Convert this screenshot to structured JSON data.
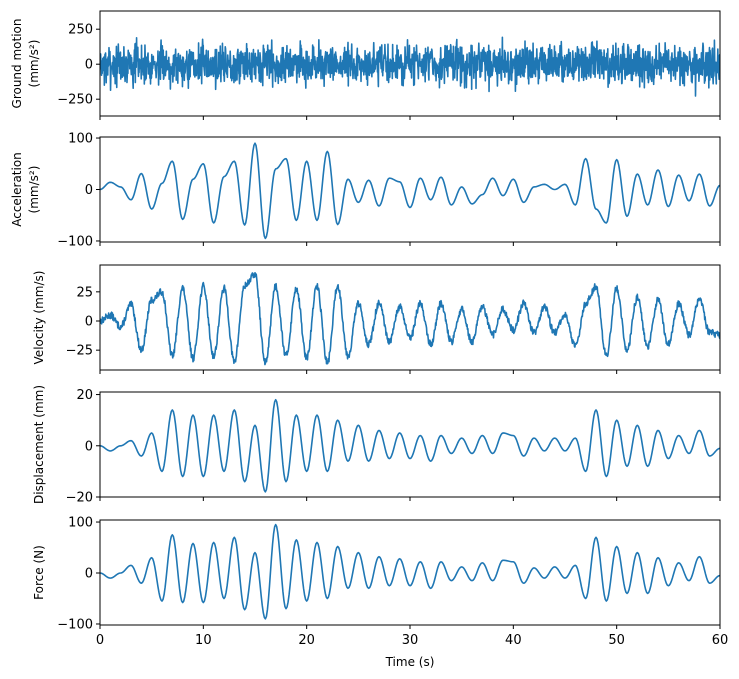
{
  "chart_data": [
    {
      "type": "line",
      "ylabel_lines": [
        "Ground motion",
        "(mm/s²)"
      ],
      "ylim": [
        -370,
        380
      ],
      "yticks": [
        -250,
        0,
        250
      ],
      "ytick_labels": [
        "−250",
        "0",
        "250"
      ],
      "xlim": [
        0,
        60
      ],
      "series": [
        {
          "color": "#1f77b4",
          "style": "noise",
          "amplitude": 210,
          "step": 0.03,
          "seed": 7
        }
      ]
    },
    {
      "type": "line",
      "ylabel_lines": [
        "Acceleration",
        "(mm/s²)"
      ],
      "ylim": [
        -102,
        102
      ],
      "yticks": [
        -100,
        0,
        100
      ],
      "ytick_labels": [
        "−100",
        "0",
        "100"
      ],
      "xlim": [
        0,
        60
      ],
      "series": [
        {
          "color": "#1f77b4",
          "style": "smooth",
          "step": 0.1,
          "x": [
            0,
            1,
            2,
            3,
            4,
            5,
            6,
            7,
            8,
            9,
            10,
            11,
            12,
            13,
            14,
            15,
            16,
            17,
            18,
            19,
            20,
            21,
            22,
            23,
            24,
            25,
            26,
            27,
            28,
            29,
            30,
            31,
            32,
            33,
            34,
            35,
            36,
            37,
            38,
            39,
            40,
            41,
            42,
            43,
            44,
            45,
            46,
            47,
            48,
            49,
            50,
            51,
            52,
            53,
            54,
            55,
            56,
            57,
            58,
            59,
            60
          ],
          "y": [
            0,
            14,
            5,
            -20,
            31,
            -38,
            12,
            55,
            -58,
            20,
            50,
            -65,
            25,
            55,
            -69,
            90,
            -95,
            40,
            60,
            -60,
            55,
            -60,
            74,
            -68,
            20,
            -25,
            18,
            -32,
            22,
            15,
            -35,
            22,
            -20,
            24,
            -30,
            5,
            -28,
            -10,
            22,
            -12,
            20,
            -25,
            5,
            10,
            0,
            10,
            -30,
            60,
            -38,
            -65,
            58,
            -52,
            30,
            -30,
            38,
            -33,
            28,
            -22,
            30,
            -32,
            8
          ]
        }
      ]
    },
    {
      "type": "line",
      "ylabel_lines": [
        "Velocity (mm/s)"
      ],
      "ylim": [
        -42,
        48
      ],
      "yticks": [
        -25,
        0,
        25
      ],
      "ytick_labels": [
        "−25",
        "0",
        "25"
      ],
      "xlim": [
        0,
        60
      ],
      "series": [
        {
          "color": "#1f77b4",
          "style": "smooth",
          "step": 0.04,
          "noise": 3,
          "x": [
            0,
            1,
            2,
            3,
            4,
            5,
            6,
            7,
            8,
            9,
            10,
            11,
            12,
            13,
            14,
            15,
            16,
            17,
            18,
            19,
            20,
            21,
            22,
            23,
            24,
            25,
            26,
            27,
            28,
            29,
            30,
            31,
            32,
            33,
            34,
            35,
            36,
            37,
            38,
            39,
            40,
            41,
            42,
            43,
            44,
            45,
            46,
            47,
            48,
            49,
            50,
            51,
            52,
            53,
            54,
            55,
            56,
            57,
            58,
            59,
            60
          ],
          "y": [
            0,
            5,
            -5,
            14,
            -25,
            18,
            25,
            -30,
            28,
            -32,
            30,
            -30,
            28,
            -35,
            30,
            40,
            -36,
            30,
            -30,
            28,
            -32,
            30,
            -36,
            30,
            -30,
            15,
            -20,
            15,
            -18,
            12,
            -15,
            15,
            -20,
            15,
            -18,
            10,
            -18,
            12,
            -12,
            10,
            -8,
            15,
            -10,
            12,
            -10,
            5,
            -22,
            15,
            30,
            -30,
            28,
            -25,
            20,
            -22,
            18,
            -20,
            15,
            -12,
            18,
            -10,
            -12
          ]
        }
      ]
    },
    {
      "type": "line",
      "ylabel_lines": [
        "Displacement (mm)"
      ],
      "ylim": [
        -20,
        21
      ],
      "yticks": [
        -20,
        0,
        20
      ],
      "ytick_labels": [
        "−20",
        "0",
        "20"
      ],
      "xlim": [
        0,
        60
      ],
      "series": [
        {
          "color": "#1f77b4",
          "style": "smooth",
          "step": 0.1,
          "x": [
            0,
            1,
            2,
            3,
            4,
            5,
            6,
            7,
            8,
            9,
            10,
            11,
            12,
            13,
            14,
            15,
            16,
            17,
            18,
            19,
            20,
            21,
            22,
            23,
            24,
            25,
            26,
            27,
            28,
            29,
            30,
            31,
            32,
            33,
            34,
            35,
            36,
            37,
            38,
            39,
            40,
            41,
            42,
            43,
            44,
            45,
            46,
            47,
            48,
            49,
            50,
            51,
            52,
            53,
            54,
            55,
            56,
            57,
            58,
            59,
            60
          ],
          "y": [
            0,
            -2,
            0,
            2,
            -4,
            5,
            -10,
            14,
            -12,
            12,
            -12,
            12,
            -10,
            14,
            -14,
            8,
            -18,
            18,
            -14,
            12,
            -10,
            12,
            -10,
            10,
            -6,
            8,
            -6,
            6,
            -5,
            5,
            -5,
            4,
            -6,
            4,
            -3,
            3,
            -3,
            4,
            -3,
            5,
            4,
            -4,
            3,
            -2,
            3,
            -2,
            3,
            -10,
            14,
            -12,
            10,
            -8,
            8,
            -8,
            6,
            -5,
            4,
            -3,
            6,
            -4,
            -1
          ]
        }
      ]
    },
    {
      "type": "line",
      "ylabel_lines": [
        "Force (N)"
      ],
      "ylim": [
        -102,
        104
      ],
      "yticks": [
        -100,
        0,
        100
      ],
      "ytick_labels": [
        "−100",
        "0",
        "100"
      ],
      "xlim": [
        0,
        60
      ],
      "xticks": [
        0,
        10,
        20,
        30,
        40,
        50,
        60
      ],
      "xtick_labels": [
        "0",
        "10",
        "20",
        "30",
        "40",
        "50",
        "60"
      ],
      "xlabel": "Time (s)",
      "series": [
        {
          "color": "#1f77b4",
          "style": "smooth",
          "step": 0.1,
          "x": [
            0,
            1,
            2,
            3,
            4,
            5,
            6,
            7,
            8,
            9,
            10,
            11,
            12,
            13,
            14,
            15,
            16,
            17,
            18,
            19,
            20,
            21,
            22,
            23,
            24,
            25,
            26,
            27,
            28,
            29,
            30,
            31,
            32,
            33,
            34,
            35,
            36,
            37,
            38,
            39,
            40,
            41,
            42,
            43,
            44,
            45,
            46,
            47,
            48,
            49,
            50,
            51,
            52,
            53,
            54,
            55,
            56,
            57,
            58,
            59,
            60
          ],
          "y": [
            0,
            -10,
            0,
            15,
            -20,
            30,
            -55,
            75,
            -58,
            58,
            -58,
            60,
            -50,
            70,
            -72,
            40,
            -90,
            95,
            -70,
            65,
            -55,
            60,
            -50,
            52,
            -30,
            40,
            -30,
            32,
            -25,
            28,
            -25,
            22,
            -30,
            22,
            -15,
            12,
            -15,
            20,
            -15,
            25,
            22,
            -20,
            10,
            -10,
            12,
            -10,
            15,
            -50,
            70,
            -55,
            52,
            -40,
            40,
            -40,
            30,
            -25,
            20,
            -15,
            32,
            -20,
            -5
          ]
        }
      ]
    }
  ]
}
